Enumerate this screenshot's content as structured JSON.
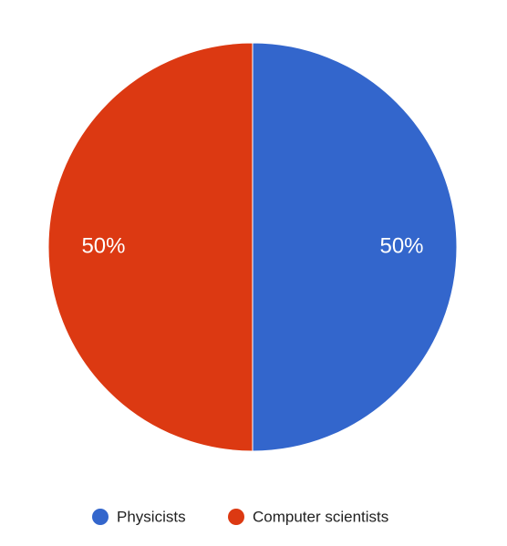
{
  "chart_data": {
    "type": "pie",
    "categories": [
      "Physicists",
      "Computer scientists"
    ],
    "values": [
      50,
      50
    ],
    "value_labels": [
      "50%",
      "50%"
    ],
    "colors": [
      "#3366cc",
      "#dc3912"
    ],
    "legend": "bottom"
  }
}
